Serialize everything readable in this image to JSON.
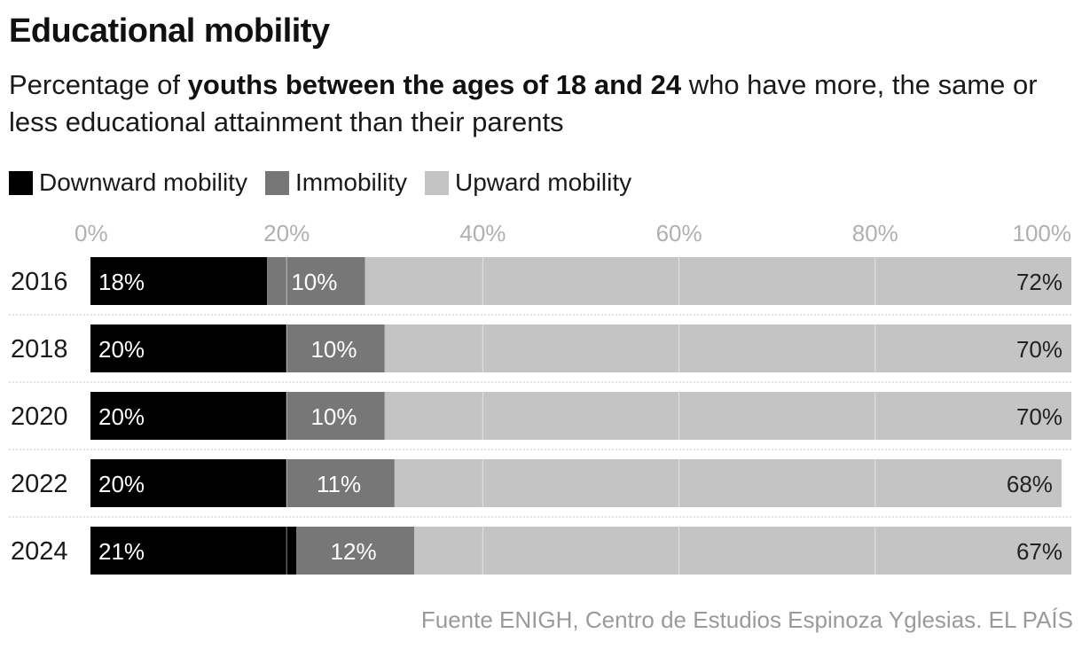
{
  "header": {
    "title": "Educational mobility",
    "subtitle_pre": "Percentage of ",
    "subtitle_bold": "youths between the ages of 18 and 24",
    "subtitle_post": " who have more, the same or less educational attainment than their parents"
  },
  "colors": {
    "downward": "#000000",
    "immobility": "#777777",
    "upward": "#c4c4c4",
    "grid": "#ffffff",
    "tick_text": "#b0b0b0",
    "separator": "#c8c8c8"
  },
  "chart_data": {
    "type": "bar",
    "orientation": "horizontal",
    "stacked": true,
    "categories": [
      "2016",
      "2018",
      "2020",
      "2022",
      "2024"
    ],
    "series": [
      {
        "name": "Downward mobility",
        "key": "downward",
        "values": [
          18,
          20,
          20,
          20,
          21
        ],
        "labels": [
          "18%",
          "20%",
          "20%",
          "20%",
          "21%"
        ]
      },
      {
        "name": "Immobility",
        "key": "immobility",
        "values": [
          10,
          10,
          10,
          11,
          12
        ],
        "labels": [
          "10%",
          "10%",
          "10%",
          "11%",
          "12%"
        ]
      },
      {
        "name": "Upward mobility",
        "key": "upward",
        "values": [
          72,
          70,
          70,
          68,
          67
        ],
        "labels": [
          "72%",
          "70%",
          "70%",
          "68%",
          "67%"
        ]
      }
    ],
    "xlim": [
      0,
      100
    ],
    "xticks": [
      0,
      20,
      40,
      60,
      80,
      100
    ],
    "xtick_labels": [
      "0%",
      "20%",
      "40%",
      "60%",
      "80%",
      "100%"
    ],
    "legend_position": "top-left",
    "grid": true
  },
  "footer": {
    "source": "Fuente ENIGH, Centro de Estudios Espinoza Yglesias. EL PAÍS"
  }
}
